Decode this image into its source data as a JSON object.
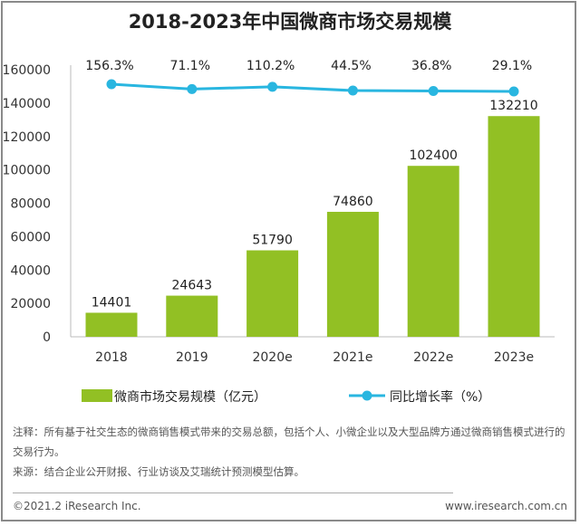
{
  "chart_data": {
    "type": "bar+line",
    "title": "2018-2023年中国微商市场交易规模",
    "categories": [
      "2018",
      "2019",
      "2020e",
      "2021e",
      "2022e",
      "2023e"
    ],
    "series": [
      {
        "name": "微商市场交易规模（亿元）",
        "type": "bar",
        "values": [
          14401,
          24643,
          51790,
          74860,
          102400,
          132210
        ],
        "color": "#92c024"
      },
      {
        "name": "同比增长率（%）",
        "type": "line",
        "values": [
          156.3,
          71.1,
          110.2,
          44.5,
          36.8,
          29.1
        ],
        "labels": [
          "156.3%",
          "71.1%",
          "110.2%",
          "44.5%",
          "36.8%",
          "29.1%"
        ],
        "color": "#29b6e0"
      }
    ],
    "ylim": [
      0,
      160000
    ],
    "yticks": [
      0,
      20000,
      40000,
      60000,
      80000,
      100000,
      120000,
      140000,
      160000
    ],
    "legend": "bottom",
    "grid": false
  },
  "notes": {
    "note": "注释：所有基于社交生态的微商销售模式带来的交易总额，包括个人、小微企业以及大型品牌方通过微商销售模式进行的交易行为。",
    "source": "来源：结合企业公开财报、行业访谈及艾瑞统计预测模型估算。"
  },
  "footer": {
    "copyright": "©2021.2 iResearch Inc.",
    "website": "www.iresearch.com.cn"
  }
}
